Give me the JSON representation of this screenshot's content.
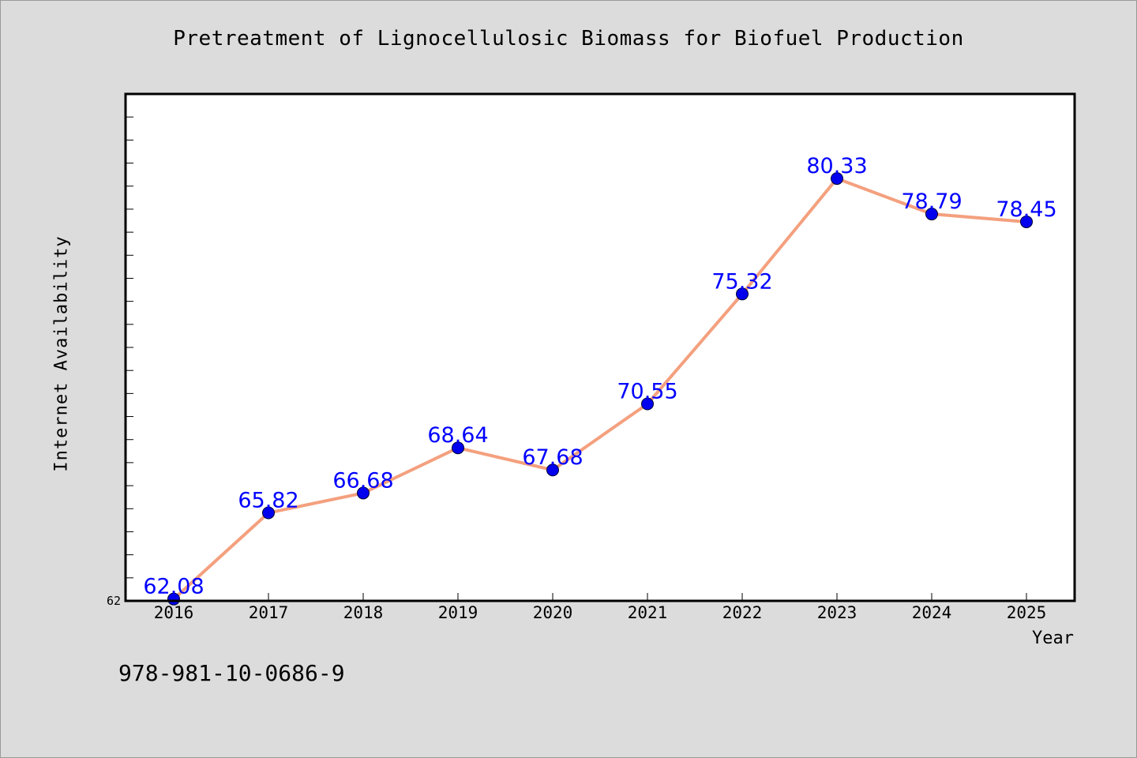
{
  "chart_data": {
    "type": "line",
    "title": "Pretreatment of Lignocellulosic Biomass for Biofuel Production",
    "xlabel": "Year",
    "ylabel": "Internet Availability",
    "categories": [
      "2016",
      "2017",
      "2018",
      "2019",
      "2020",
      "2021",
      "2022",
      "2023",
      "2024",
      "2025"
    ],
    "series": [
      {
        "values": [
          62.08,
          65.82,
          66.68,
          68.64,
          67.68,
          70.55,
          75.32,
          80.33,
          78.79,
          78.45
        ],
        "line_color": "#f4a07e",
        "marker_color": "#0000ee",
        "label_color": "#0000ff"
      }
    ],
    "data_labels": [
      "62.08",
      "65.82",
      "66.68",
      "68.64",
      "67.68",
      "70.55",
      "75.32",
      "80.33",
      "78.79",
      "78.45"
    ],
    "ylim": [
      62,
      84
    ],
    "y_tick_step": 1,
    "y_tick_labels": [
      "62"
    ],
    "grid": false,
    "legend": "none"
  },
  "footer": {
    "code": "978-981-10-0686-9"
  }
}
